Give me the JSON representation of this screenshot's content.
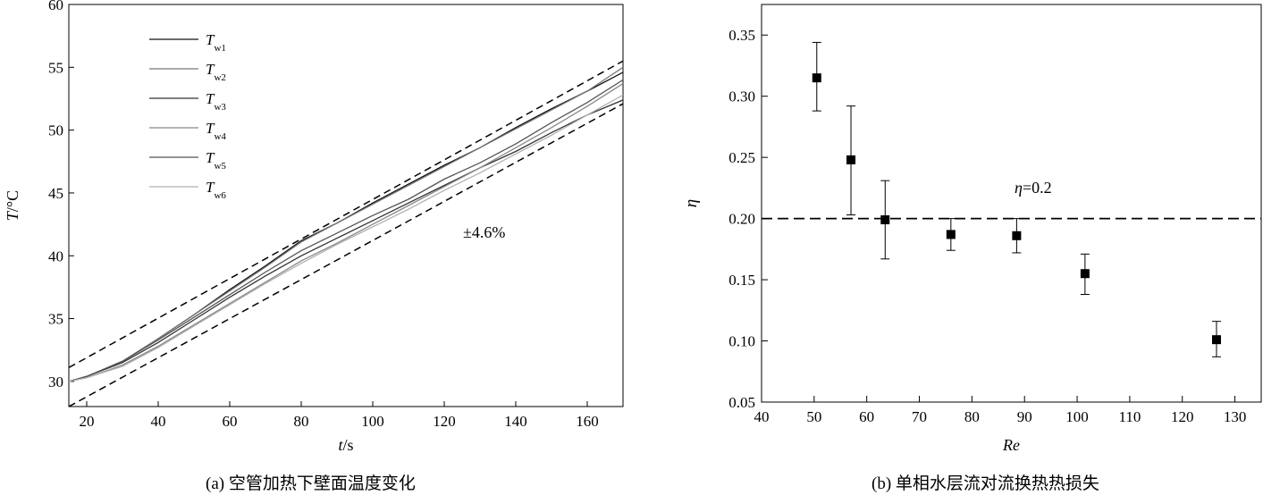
{
  "panel_a": {
    "caption": "(a) 空管加热下壁面温度变化",
    "annotation": "±4.6%"
  },
  "panel_b": {
    "caption": "(b)  单相水层流对流换热热损失",
    "annotation": "=0.2"
  },
  "chart_data": [
    {
      "type": "line",
      "xlabel": "t/s",
      "ylabel": "T/°C",
      "xlim": [
        15,
        170
      ],
      "ylim": [
        28,
        60
      ],
      "xticks": [
        20,
        40,
        60,
        80,
        100,
        120,
        140,
        160
      ],
      "yticks": [
        30,
        35,
        40,
        45,
        50,
        55,
        60
      ],
      "grid": false,
      "legend_position": "top-left",
      "series": [
        {
          "name": "Tw1",
          "label_main": "T",
          "label_sub": "w1",
          "color": "#111111",
          "x": [
            15,
            20,
            30,
            40,
            50,
            60,
            70,
            80,
            90,
            100,
            110,
            120,
            130,
            140,
            150,
            160,
            170
          ],
          "y": [
            30.0,
            30.4,
            31.6,
            33.4,
            35.3,
            37.3,
            39.2,
            41.2,
            42.6,
            44.2,
            45.7,
            47.2,
            48.6,
            50.2,
            51.7,
            53.1,
            54.6
          ]
        },
        {
          "name": "Tw2",
          "label_main": "T",
          "label_sub": "w2",
          "color": "#777777",
          "x": [
            15,
            20,
            30,
            40,
            50,
            60,
            70,
            80,
            90,
            100,
            110,
            120,
            130,
            140,
            150,
            160,
            170
          ],
          "y": [
            30.0,
            30.4,
            31.6,
            33.4,
            35.3,
            37.2,
            39.1,
            41.1,
            42.6,
            44.1,
            45.6,
            47.1,
            48.6,
            50.1,
            51.6,
            53.1,
            55.0
          ]
        },
        {
          "name": "Tw3",
          "label_main": "T",
          "label_sub": "w3",
          "color": "#333333",
          "x": [
            15,
            20,
            30,
            40,
            50,
            60,
            70,
            80,
            90,
            100,
            110,
            120,
            130,
            140,
            150,
            160,
            170
          ],
          "y": [
            30.0,
            30.4,
            31.5,
            33.1,
            34.9,
            36.7,
            38.4,
            40.0,
            41.4,
            42.8,
            44.2,
            45.6,
            47.0,
            48.3,
            49.8,
            51.2,
            52.4
          ]
        },
        {
          "name": "Tw4",
          "label_main": "T",
          "label_sub": "w4",
          "color": "#888888",
          "x": [
            15,
            20,
            30,
            40,
            50,
            60,
            70,
            80,
            90,
            100,
            110,
            120,
            130,
            140,
            150,
            160,
            170
          ],
          "y": [
            30.0,
            30.3,
            31.3,
            32.8,
            34.5,
            36.2,
            37.9,
            39.6,
            41.0,
            42.5,
            44.0,
            45.5,
            47.0,
            48.6,
            50.2,
            51.9,
            53.7
          ]
        },
        {
          "name": "Tw5",
          "label_main": "T",
          "label_sub": "w5",
          "color": "#555555",
          "x": [
            15,
            20,
            30,
            40,
            50,
            60,
            70,
            80,
            90,
            100,
            110,
            120,
            130,
            140,
            150,
            160,
            170
          ],
          "y": [
            30.0,
            30.4,
            31.6,
            33.3,
            35.1,
            36.9,
            38.7,
            40.4,
            41.8,
            43.2,
            44.5,
            46.1,
            47.4,
            48.9,
            50.6,
            52.2,
            54.0
          ]
        },
        {
          "name": "Tw6",
          "label_main": "T",
          "label_sub": "w6",
          "color": "#b0b0b0",
          "x": [
            15,
            20,
            30,
            40,
            50,
            60,
            70,
            80,
            90,
            100,
            110,
            120,
            130,
            140,
            150,
            160,
            170
          ],
          "y": [
            30.0,
            30.3,
            31.2,
            32.7,
            34.4,
            36.1,
            37.8,
            39.4,
            40.9,
            42.3,
            43.7,
            45.2,
            46.6,
            48.1,
            49.6,
            51.2,
            52.8
          ]
        }
      ],
      "bounds": [
        {
          "style": "dashed",
          "x": [
            15,
            170
          ],
          "y": [
            31.1,
            55.5
          ]
        },
        {
          "style": "dashed",
          "x": [
            15,
            170
          ],
          "y": [
            28.0,
            52.1
          ]
        }
      ]
    },
    {
      "type": "scatter",
      "xlabel": "Re",
      "ylabel": "η",
      "xlim": [
        40,
        135
      ],
      "ylim": [
        0.05,
        0.375
      ],
      "xticks": [
        40,
        50,
        60,
        70,
        80,
        90,
        100,
        110,
        120,
        130
      ],
      "yticks": [
        0.05,
        0.1,
        0.15,
        0.2,
        0.25,
        0.3,
        0.35
      ],
      "ytick_labels": [
        "0.05",
        "0.10",
        "0.15",
        "0.20",
        "0.25",
        "0.30",
        "0.35"
      ],
      "grid": false,
      "points": [
        {
          "x": 50.5,
          "y": 0.315,
          "ylow": 0.288,
          "yhigh": 0.344
        },
        {
          "x": 57.0,
          "y": 0.248,
          "ylow": 0.203,
          "yhigh": 0.292
        },
        {
          "x": 63.5,
          "y": 0.199,
          "ylow": 0.167,
          "yhigh": 0.231
        },
        {
          "x": 76.0,
          "y": 0.187,
          "ylow": 0.174,
          "yhigh": 0.2
        },
        {
          "x": 88.5,
          "y": 0.186,
          "ylow": 0.172,
          "yhigh": 0.2
        },
        {
          "x": 101.5,
          "y": 0.155,
          "ylow": 0.138,
          "yhigh": 0.171
        },
        {
          "x": 126.5,
          "y": 0.101,
          "ylow": 0.087,
          "yhigh": 0.116
        }
      ],
      "reference_line": {
        "y": 0.2,
        "style": "dashed",
        "label": "η=0.2"
      }
    }
  ]
}
